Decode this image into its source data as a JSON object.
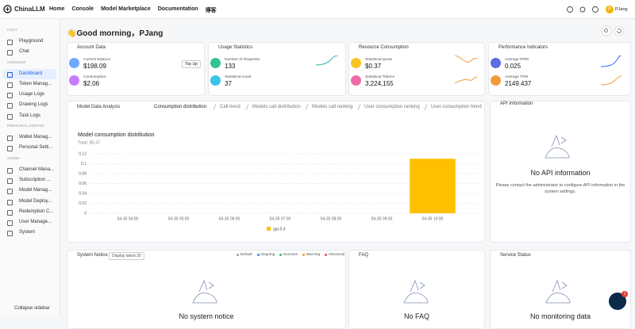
{
  "nav": {
    "brand": "ChinaLLM",
    "links": [
      "Home",
      "Console",
      "Model Marketplace",
      "Documentation",
      "博客"
    ],
    "avatar": "P",
    "user": "PJang"
  },
  "sidebar": {
    "sections": [
      {
        "title": "CHAT",
        "items": [
          "Playground",
          "Chat"
        ]
      },
      {
        "title": "CONSOLE",
        "items": [
          "Dashboard",
          "Token Manag...",
          "Usage Logs",
          "Drawing Logs",
          "Task Logs"
        ]
      },
      {
        "title": "PERSONAL CENTER",
        "items": [
          "Wallet Manag...",
          "Personal Setti..."
        ]
      },
      {
        "title": "ADMIN",
        "items": [
          "Channel Mana...",
          "Subscription ...",
          "Model Manag...",
          "Model Deploy...",
          "Redemption C...",
          "User Manage...",
          "System"
        ]
      }
    ],
    "collapse": "Collapse sidebar"
  },
  "greeting": "👋Good morning，PJang",
  "cards": [
    {
      "title": "Account Data",
      "button": "Top Up",
      "stats": [
        {
          "label": "Current balance",
          "value": "$198.09",
          "color": "#6ea8fe"
        },
        {
          "label": "Consumption",
          "value": "$2.06",
          "color": "#c77dff"
        }
      ]
    },
    {
      "title": "Usage Statistics",
      "stats": [
        {
          "label": "Number of Requests",
          "value": "133",
          "color": "#34c38f"
        },
        {
          "label": "Statistical count",
          "value": "37",
          "color": "#3bc4e8"
        }
      ]
    },
    {
      "title": "Resource Consumption",
      "stats": [
        {
          "label": "Statistical quota",
          "value": "$0.37",
          "color": "#f7c325"
        },
        {
          "label": "Statistical Tokens",
          "value": "3,224,155",
          "color": "#f06aa8"
        }
      ]
    },
    {
      "title": "Performance Indicators",
      "stats": [
        {
          "label": "Average RPM",
          "value": "0.025",
          "color": "#5b6ee1"
        },
        {
          "label": "Average TPM",
          "value": "2149.437",
          "color": "#f59a3c"
        }
      ]
    }
  ],
  "analysis": {
    "title": "Model Data Analysis",
    "tabs": [
      "Consumption distribution",
      "Call trend",
      "Models call distribution",
      "Models call ranking",
      "User consumption ranking",
      "User consumption trend"
    ]
  },
  "chart_data": {
    "type": "bar",
    "title": "Model consumption distribution",
    "subtitle": "Total: $0.37",
    "categories": [
      "04-30 04:00",
      "04-30 05:00",
      "04-30 06:00",
      "04-30 07:00",
      "04-30 08:00",
      "04-30 09:00",
      "04-30 10:00"
    ],
    "series": [
      {
        "name": "gpt-5.4",
        "color": "#ffc000",
        "values": [
          0,
          0,
          0,
          0,
          0,
          0,
          0.11
        ]
      }
    ],
    "ylim": [
      0,
      0.12
    ],
    "yticks": [
      0,
      0.02,
      0.04,
      0.06,
      0.08,
      0.1,
      0.12
    ],
    "grid": true
  },
  "api": {
    "title": "API Information",
    "empty": "No API information",
    "note": "Please contact the administrator to configure API information in the system settings."
  },
  "notice": {
    "title": "System Notice",
    "badge": "Display latest 20",
    "legend": [
      {
        "name": "Default",
        "color": "#9ca3af"
      },
      {
        "name": "Ongoing",
        "color": "#3b82f6"
      },
      {
        "name": "Success",
        "color": "#22c55e"
      },
      {
        "name": "Warning",
        "color": "#f59e0b"
      },
      {
        "name": "Abnormal",
        "color": "#ef4444"
      }
    ],
    "empty": "No system notice"
  },
  "faq": {
    "title": "FAQ",
    "empty": "No FAQ"
  },
  "status": {
    "title": "Service Status",
    "empty": "No monitoring data"
  },
  "chat_badge": "1"
}
